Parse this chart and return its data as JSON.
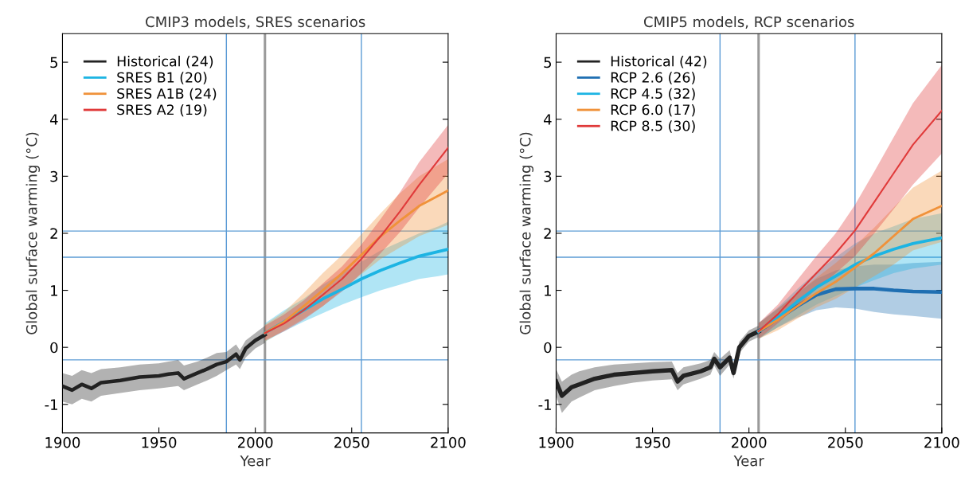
{
  "chart_data": [
    {
      "type": "line",
      "title": "CMIP3 models, SRES scenarios",
      "xlabel": "Year",
      "ylabel": "Global surface warming (°C)",
      "xlim": [
        1900,
        2100
      ],
      "ylim": [
        -1.5,
        5.5
      ],
      "xticks": [
        1900,
        1950,
        2000,
        2050,
        2100
      ],
      "yticks": [
        -1,
        0,
        1,
        2,
        3,
        4,
        5
      ],
      "grid": false,
      "legend": "top left",
      "series": [
        {
          "name": "Historical (24)",
          "color": "#222222",
          "x": [
            1900,
            1905,
            1910,
            1915,
            1920,
            1930,
            1940,
            1950,
            1955,
            1960,
            1963,
            1970,
            1975,
            1980,
            1985,
            1990,
            1992,
            1995,
            2000,
            2005
          ],
          "values": [
            -0.68,
            -0.75,
            -0.65,
            -0.72,
            -0.62,
            -0.58,
            -0.52,
            -0.5,
            -0.47,
            -0.45,
            -0.55,
            -0.45,
            -0.38,
            -0.3,
            -0.25,
            -0.12,
            -0.22,
            -0.02,
            0.12,
            0.22
          ],
          "lower": [
            -0.95,
            -1.0,
            -0.9,
            -0.95,
            -0.85,
            -0.8,
            -0.75,
            -0.72,
            -0.7,
            -0.68,
            -0.75,
            -0.65,
            -0.58,
            -0.5,
            -0.4,
            -0.3,
            -0.38,
            -0.18,
            -0.02,
            0.08
          ],
          "upper": [
            -0.45,
            -0.5,
            -0.4,
            -0.45,
            -0.38,
            -0.35,
            -0.3,
            -0.28,
            -0.25,
            -0.22,
            -0.32,
            -0.25,
            -0.18,
            -0.1,
            -0.08,
            0.05,
            -0.05,
            0.12,
            0.25,
            0.38
          ]
        },
        {
          "name": "SRES B1 (20)",
          "color": "#1cb4e3",
          "x": [
            2005,
            2015,
            2025,
            2035,
            2045,
            2055,
            2065,
            2075,
            2085,
            2095,
            2100
          ],
          "values": [
            0.25,
            0.45,
            0.65,
            0.85,
            1.02,
            1.2,
            1.35,
            1.48,
            1.6,
            1.68,
            1.72
          ],
          "lower": [
            0.1,
            0.28,
            0.45,
            0.6,
            0.75,
            0.88,
            1.0,
            1.1,
            1.2,
            1.25,
            1.28
          ],
          "upper": [
            0.42,
            0.65,
            0.85,
            1.1,
            1.3,
            1.5,
            1.7,
            1.85,
            2.0,
            2.12,
            2.2
          ]
        },
        {
          "name": "SRES A1B (24)",
          "color": "#f0923a",
          "x": [
            2005,
            2015,
            2025,
            2035,
            2045,
            2055,
            2065,
            2075,
            2085,
            2100
          ],
          "values": [
            0.25,
            0.45,
            0.72,
            1.0,
            1.3,
            1.62,
            1.95,
            2.22,
            2.48,
            2.75
          ],
          "lower": [
            0.1,
            0.3,
            0.5,
            0.72,
            1.0,
            1.28,
            1.55,
            1.75,
            1.95,
            2.15
          ],
          "upper": [
            0.4,
            0.62,
            0.95,
            1.3,
            1.62,
            1.98,
            2.35,
            2.7,
            3.0,
            3.3
          ]
        },
        {
          "name": "SRES A2 (19)",
          "color": "#e03a3a",
          "x": [
            2005,
            2015,
            2025,
            2035,
            2045,
            2055,
            2065,
            2075,
            2085,
            2100
          ],
          "values": [
            0.25,
            0.42,
            0.65,
            0.92,
            1.2,
            1.55,
            1.95,
            2.38,
            2.85,
            3.5
          ],
          "lower": [
            0.12,
            0.28,
            0.48,
            0.72,
            0.98,
            1.3,
            1.65,
            2.02,
            2.45,
            3.05
          ],
          "upper": [
            0.38,
            0.58,
            0.82,
            1.12,
            1.42,
            1.8,
            2.25,
            2.72,
            3.25,
            3.9
          ]
        }
      ],
      "ref_lines": [
        {
          "axis": "x",
          "value": 1985,
          "color": "#5b9bd5"
        },
        {
          "axis": "x",
          "value": 2005,
          "color": "#9a9a9a"
        },
        {
          "axis": "x",
          "value": 2055,
          "color": "#5b9bd5"
        },
        {
          "axis": "y",
          "value": 2.04,
          "color": "#5b9bd5"
        },
        {
          "axis": "y",
          "value": 1.58,
          "color": "#5b9bd5"
        },
        {
          "axis": "y",
          "value": -0.22,
          "color": "#5b9bd5"
        }
      ]
    },
    {
      "type": "line",
      "title": "CMIP5 models, RCP scenarios",
      "xlabel": "Year",
      "ylabel": "Global surface warming (°C)",
      "xlim": [
        1900,
        2100
      ],
      "ylim": [
        -1.5,
        5.5
      ],
      "xticks": [
        1900,
        1950,
        2000,
        2050,
        2100
      ],
      "yticks": [
        -1,
        0,
        1,
        2,
        3,
        4,
        5
      ],
      "grid": false,
      "legend": "top left",
      "series": [
        {
          "name": "Historical (42)",
          "color": "#222222",
          "x": [
            1900,
            1903,
            1908,
            1912,
            1920,
            1930,
            1940,
            1950,
            1960,
            1963,
            1966,
            1975,
            1980,
            1982,
            1985,
            1990,
            1992,
            1995,
            2000,
            2005
          ],
          "values": [
            -0.6,
            -0.85,
            -0.7,
            -0.65,
            -0.55,
            -0.48,
            -0.45,
            -0.42,
            -0.4,
            -0.6,
            -0.5,
            -0.42,
            -0.35,
            -0.2,
            -0.35,
            -0.18,
            -0.45,
            0.0,
            0.2,
            0.28
          ],
          "lower": [
            -0.85,
            -1.15,
            -0.95,
            -0.88,
            -0.75,
            -0.68,
            -0.62,
            -0.58,
            -0.56,
            -0.75,
            -0.65,
            -0.55,
            -0.48,
            -0.32,
            -0.5,
            -0.3,
            -0.55,
            -0.1,
            0.1,
            0.18
          ],
          "upper": [
            -0.38,
            -0.6,
            -0.48,
            -0.42,
            -0.35,
            -0.3,
            -0.28,
            -0.26,
            -0.25,
            -0.45,
            -0.35,
            -0.28,
            -0.22,
            -0.08,
            -0.2,
            -0.05,
            -0.32,
            0.1,
            0.3,
            0.38
          ]
        },
        {
          "name": "RCP 2.6 (26)",
          "color": "#1f6fb2",
          "x": [
            2005,
            2015,
            2025,
            2035,
            2045,
            2055,
            2065,
            2075,
            2085,
            2100
          ],
          "values": [
            0.28,
            0.5,
            0.72,
            0.92,
            1.02,
            1.03,
            1.03,
            1.0,
            0.98,
            0.97
          ],
          "lower": [
            0.15,
            0.35,
            0.52,
            0.65,
            0.7,
            0.68,
            0.62,
            0.58,
            0.55,
            0.5
          ],
          "upper": [
            0.42,
            0.68,
            0.95,
            1.2,
            1.35,
            1.42,
            1.45,
            1.45,
            1.48,
            1.5
          ]
        },
        {
          "name": "RCP 4.5 (32)",
          "color": "#1cb4e3",
          "x": [
            2005,
            2015,
            2025,
            2035,
            2045,
            2055,
            2065,
            2075,
            2085,
            2100
          ],
          "values": [
            0.28,
            0.52,
            0.8,
            1.05,
            1.25,
            1.45,
            1.6,
            1.72,
            1.82,
            1.92
          ],
          "lower": [
            0.15,
            0.35,
            0.55,
            0.75,
            0.9,
            1.05,
            1.18,
            1.3,
            1.38,
            1.45
          ],
          "upper": [
            0.42,
            0.7,
            1.02,
            1.32,
            1.58,
            1.82,
            2.0,
            2.12,
            2.25,
            2.35
          ]
        },
        {
          "name": "RCP 6.0 (17)",
          "color": "#f0923a",
          "x": [
            2005,
            2015,
            2025,
            2035,
            2045,
            2055,
            2065,
            2075,
            2085,
            2100
          ],
          "values": [
            0.28,
            0.48,
            0.72,
            0.95,
            1.15,
            1.4,
            1.65,
            1.95,
            2.25,
            2.48
          ],
          "lower": [
            0.15,
            0.3,
            0.5,
            0.7,
            0.85,
            1.05,
            1.25,
            1.45,
            1.7,
            1.85
          ],
          "upper": [
            0.42,
            0.68,
            0.95,
            1.22,
            1.48,
            1.78,
            2.1,
            2.45,
            2.8,
            3.1
          ]
        },
        {
          "name": "RCP 8.5 (30)",
          "color": "#e03a3a",
          "x": [
            2005,
            2015,
            2025,
            2035,
            2045,
            2055,
            2065,
            2075,
            2085,
            2100
          ],
          "values": [
            0.28,
            0.58,
            0.95,
            1.3,
            1.65,
            2.05,
            2.55,
            3.05,
            3.55,
            4.15
          ],
          "lower": [
            0.15,
            0.42,
            0.72,
            1.02,
            1.3,
            1.6,
            2.0,
            2.42,
            2.85,
            3.4
          ],
          "upper": [
            0.42,
            0.75,
            1.18,
            1.6,
            2.0,
            2.5,
            3.08,
            3.68,
            4.28,
            4.95
          ]
        }
      ],
      "ref_lines": [
        {
          "axis": "x",
          "value": 1985,
          "color": "#5b9bd5"
        },
        {
          "axis": "x",
          "value": 2005,
          "color": "#9a9a9a"
        },
        {
          "axis": "x",
          "value": 2055,
          "color": "#5b9bd5"
        },
        {
          "axis": "y",
          "value": 2.04,
          "color": "#5b9bd5"
        },
        {
          "axis": "y",
          "value": 1.58,
          "color": "#5b9bd5"
        },
        {
          "axis": "y",
          "value": -0.22,
          "color": "#5b9bd5"
        }
      ]
    }
  ]
}
